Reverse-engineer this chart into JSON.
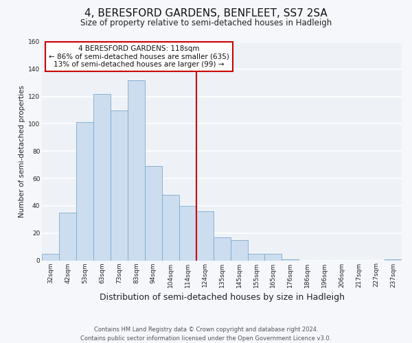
{
  "title": "4, BERESFORD GARDENS, BENFLEET, SS7 2SA",
  "subtitle": "Size of property relative to semi-detached houses in Hadleigh",
  "xlabel": "Distribution of semi-detached houses by size in Hadleigh",
  "ylabel": "Number of semi-detached properties",
  "bar_labels": [
    "32sqm",
    "42sqm",
    "53sqm",
    "63sqm",
    "73sqm",
    "83sqm",
    "94sqm",
    "104sqm",
    "114sqm",
    "124sqm",
    "135sqm",
    "145sqm",
    "155sqm",
    "165sqm",
    "176sqm",
    "186sqm",
    "196sqm",
    "206sqm",
    "217sqm",
    "227sqm",
    "237sqm"
  ],
  "bar_values": [
    5,
    35,
    101,
    122,
    110,
    132,
    69,
    48,
    40,
    36,
    17,
    15,
    5,
    5,
    1,
    0,
    0,
    0,
    0,
    0,
    1
  ],
  "bar_color": "#ccddef",
  "bar_edge_color": "#7aaacc",
  "vline_color": "#cc0000",
  "annotation_title": "4 BERESFORD GARDENS: 118sqm",
  "annotation_line1": "← 86% of semi-detached houses are smaller (635)",
  "annotation_line2": "13% of semi-detached houses are larger (99) →",
  "annotation_box_color": "#cc0000",
  "ylim": [
    0,
    160
  ],
  "yticks": [
    0,
    20,
    40,
    60,
    80,
    100,
    120,
    140,
    160
  ],
  "footer1": "Contains HM Land Registry data © Crown copyright and database right 2024.",
  "footer2": "Contains public sector information licensed under the Open Government Licence v3.0.",
  "fig_background": "#f5f7fa",
  "plot_background": "#eef2f7",
  "grid_color": "#ffffff",
  "title_fontsize": 11,
  "subtitle_fontsize": 8.5,
  "xlabel_fontsize": 9,
  "ylabel_fontsize": 7.5,
  "tick_fontsize": 6.5,
  "annot_fontsize": 7.5,
  "footer_fontsize": 6.0
}
